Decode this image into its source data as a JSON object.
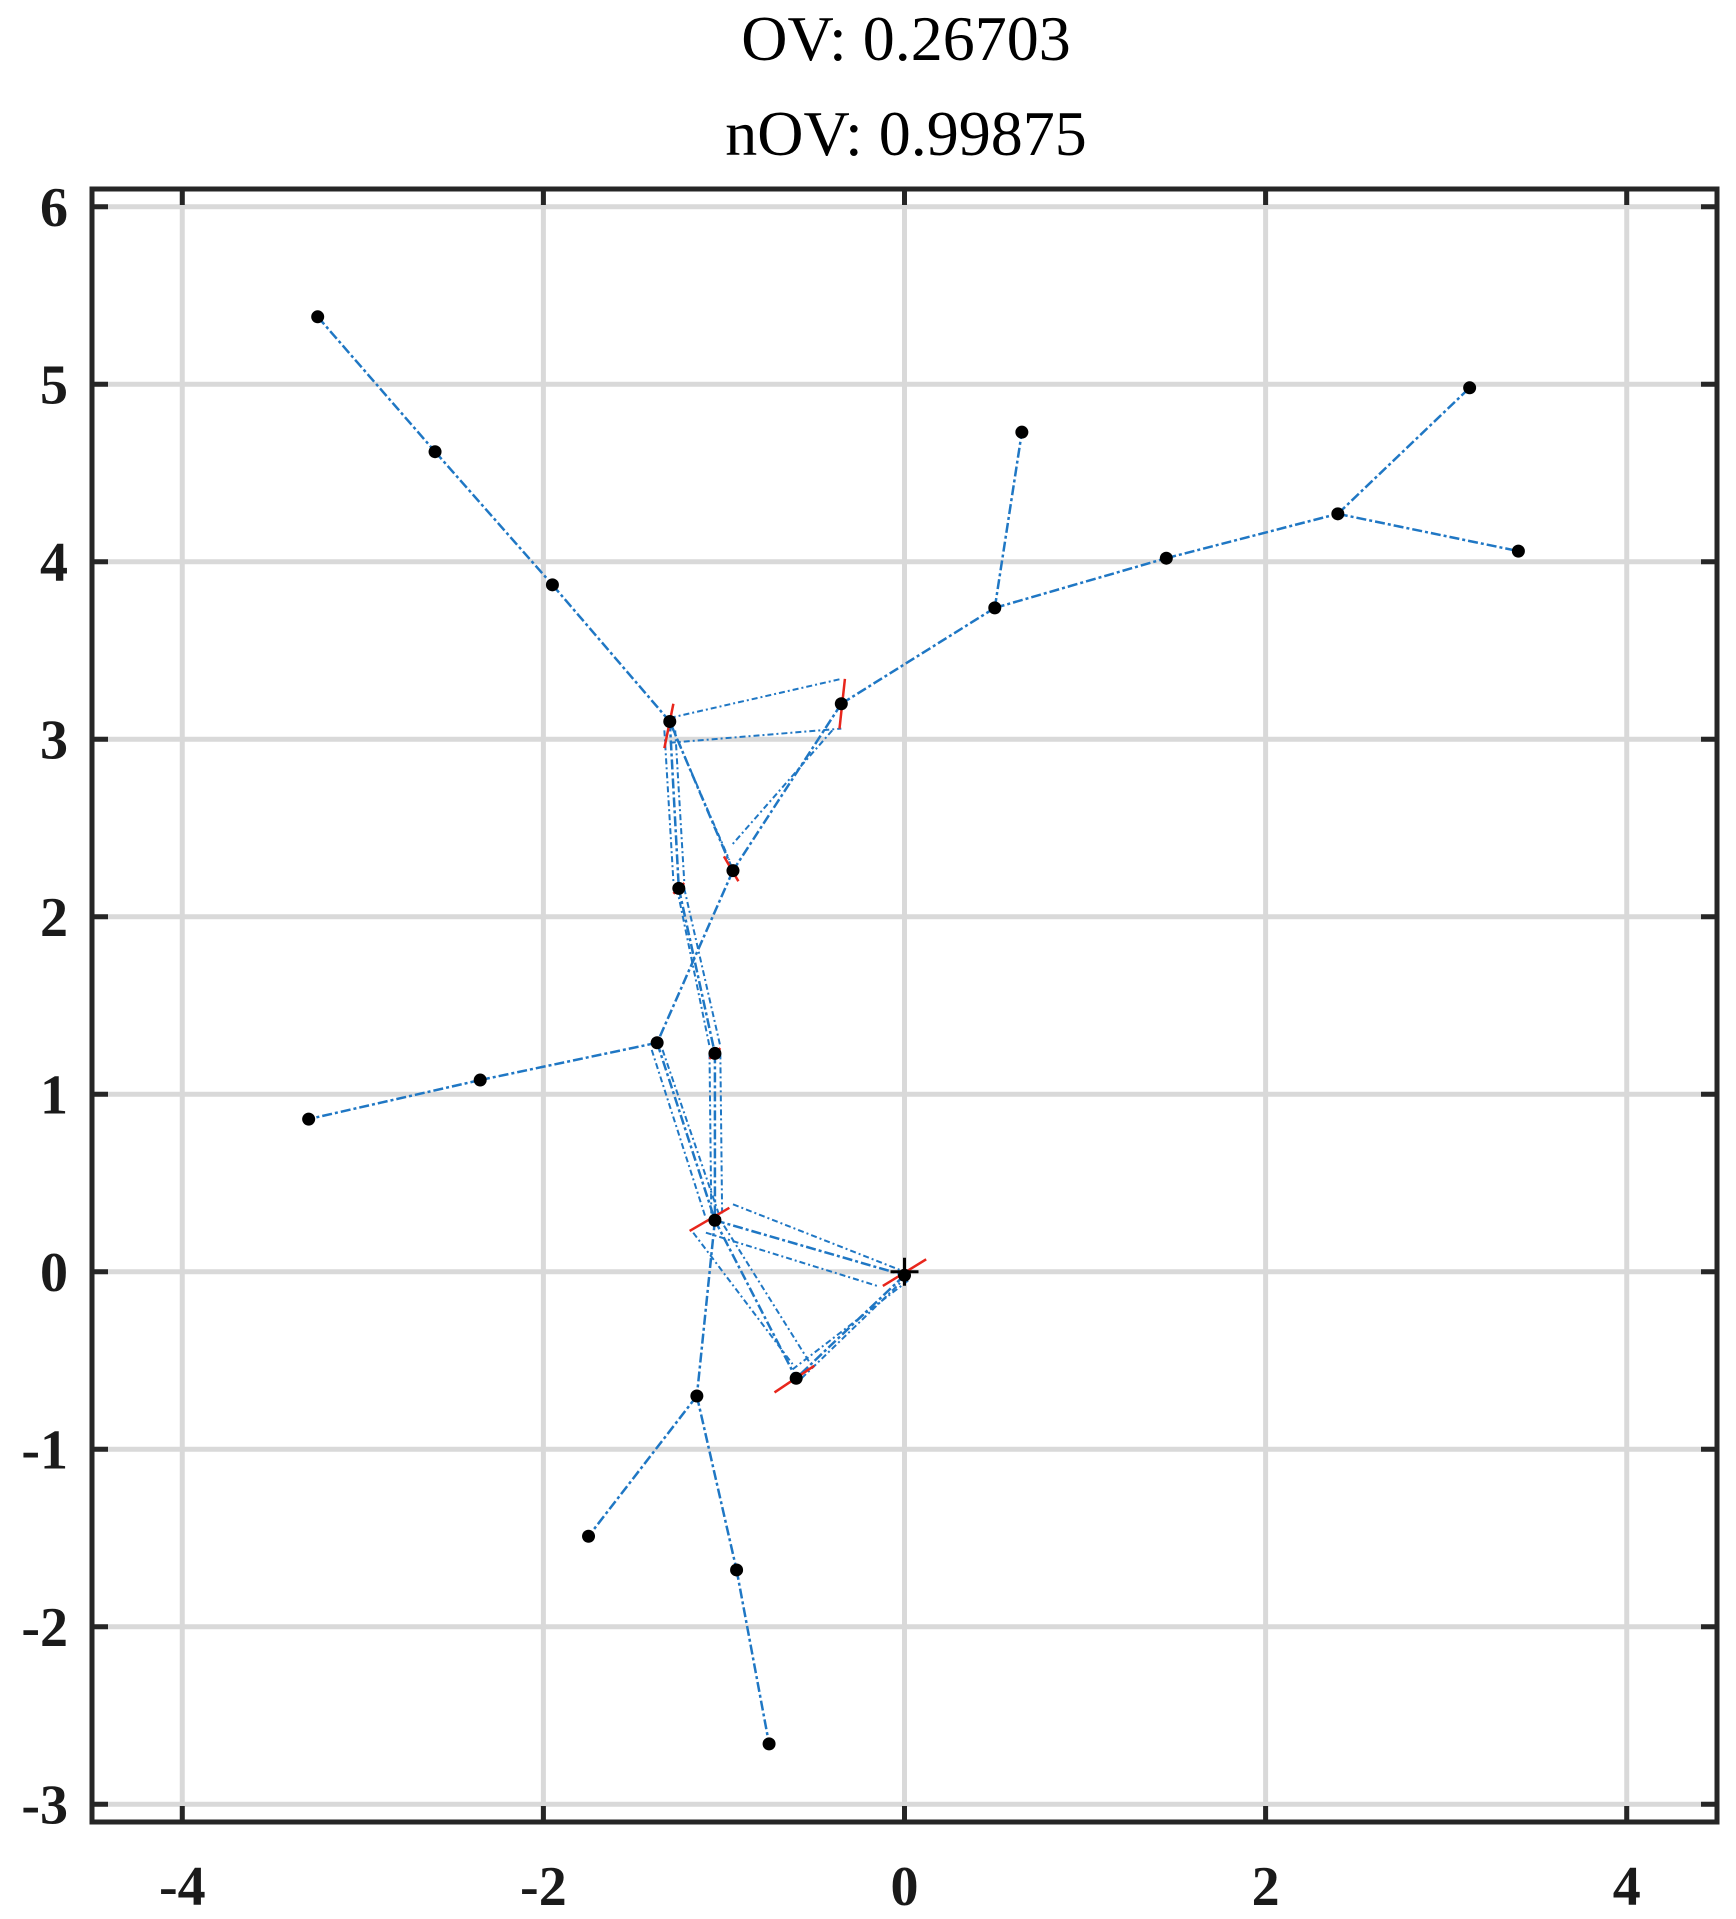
{
  "chart_data": {
    "type": "scatter",
    "title": "OV: 0.26703",
    "subtitle": "nOV: 0.99875",
    "xlabel": "",
    "ylabel": "",
    "xlim": [
      -4.5,
      4.5
    ],
    "ylim": [
      -3.1,
      6.1
    ],
    "xticks": [
      -4,
      -2,
      0,
      2,
      4
    ],
    "xtick_labels": [
      "-4",
      "-2",
      "0",
      "2",
      "4"
    ],
    "yticks": [
      -3,
      -2,
      -1,
      0,
      1,
      2,
      3,
      4,
      5,
      6
    ],
    "ytick_labels": [
      "-3",
      "-2",
      "-1",
      "0",
      "1",
      "2",
      "3",
      "4",
      "5",
      "6"
    ],
    "grid": true,
    "colors": {
      "edge": "#1f77c4",
      "node": "#000000",
      "marker": "#e8261c",
      "grid": "#d9d9d9",
      "axes": "#262626"
    },
    "nodes": [
      {
        "x": -3.25,
        "y": 5.38
      },
      {
        "x": -2.6,
        "y": 4.62
      },
      {
        "x": -1.95,
        "y": 3.87
      },
      {
        "x": -1.3,
        "y": 3.1
      },
      {
        "x": -0.35,
        "y": 3.2
      },
      {
        "x": 0.5,
        "y": 3.74
      },
      {
        "x": 0.65,
        "y": 4.73
      },
      {
        "x": 1.45,
        "y": 4.02
      },
      {
        "x": 2.4,
        "y": 4.27
      },
      {
        "x": 3.13,
        "y": 4.98
      },
      {
        "x": 3.4,
        "y": 4.06
      },
      {
        "x": -0.95,
        "y": 2.26
      },
      {
        "x": -1.25,
        "y": 2.16
      },
      {
        "x": -1.37,
        "y": 1.29
      },
      {
        "x": -2.35,
        "y": 1.08
      },
      {
        "x": -3.3,
        "y": 0.86
      },
      {
        "x": -1.05,
        "y": 1.23
      },
      {
        "x": -1.05,
        "y": 0.29
      },
      {
        "x": 0.0,
        "y": -0.02
      },
      {
        "x": -0.6,
        "y": -0.6
      },
      {
        "x": -1.15,
        "y": -0.7
      },
      {
        "x": -1.75,
        "y": -1.49
      },
      {
        "x": -0.93,
        "y": -1.68
      },
      {
        "x": -0.75,
        "y": -2.66
      }
    ],
    "edges": [
      [
        0,
        1
      ],
      [
        1,
        2
      ],
      [
        2,
        3
      ],
      [
        4,
        5
      ],
      [
        5,
        6
      ],
      [
        5,
        7
      ],
      [
        7,
        8
      ],
      [
        8,
        9
      ],
      [
        8,
        10
      ],
      [
        4,
        11
      ],
      [
        11,
        13
      ],
      [
        13,
        14
      ],
      [
        14,
        15
      ],
      [
        3,
        11
      ],
      [
        3,
        12
      ],
      [
        12,
        16
      ],
      [
        16,
        17
      ],
      [
        13,
        17
      ],
      [
        17,
        18
      ],
      [
        17,
        19
      ],
      [
        18,
        19
      ],
      [
        17,
        20
      ],
      [
        20,
        21
      ],
      [
        20,
        22
      ],
      [
        22,
        23
      ]
    ],
    "loop_lines": [
      [
        [
          -1.3,
          3.12
        ],
        [
          -0.35,
          3.34
        ]
      ],
      [
        [
          -1.3,
          2.98
        ],
        [
          -0.35,
          3.06
        ]
      ],
      [
        [
          -1.33,
          3.05
        ],
        [
          -1.28,
          2.2
        ]
      ],
      [
        [
          -1.27,
          3.05
        ],
        [
          -1.22,
          2.2
        ]
      ],
      [
        [
          -1.26,
          2.16
        ],
        [
          -1.08,
          1.27
        ]
      ],
      [
        [
          -1.22,
          2.16
        ],
        [
          -1.02,
          1.27
        ]
      ],
      [
        [
          -1.08,
          1.23
        ],
        [
          -1.07,
          0.32
        ]
      ],
      [
        [
          -1.02,
          1.23
        ],
        [
          -1.01,
          0.32
        ]
      ],
      [
        [
          -1.4,
          1.25
        ],
        [
          -1.1,
          0.3
        ]
      ],
      [
        [
          -1.34,
          1.25
        ],
        [
          -1.02,
          0.3
        ]
      ],
      [
        [
          -0.95,
          0.38
        ],
        [
          0.0,
          0.0
        ]
      ],
      [
        [
          -1.1,
          0.22
        ],
        [
          -0.15,
          -0.08
        ]
      ],
      [
        [
          -1.17,
          0.22
        ],
        [
          -0.62,
          -0.52
        ]
      ],
      [
        [
          -1.0,
          0.26
        ],
        [
          -0.52,
          -0.52
        ]
      ],
      [
        [
          -0.62,
          -0.55
        ],
        [
          0.02,
          -0.05
        ]
      ],
      [
        [
          -0.57,
          -0.6
        ],
        [
          0.04,
          0.0
        ]
      ],
      [
        [
          -1.28,
          3.05
        ],
        [
          -0.97,
          2.32
        ]
      ],
      [
        [
          -0.4,
          3.05
        ],
        [
          -0.96,
          2.4
        ]
      ]
    ],
    "red_marks": [
      {
        "x1": -1.33,
        "y1": 2.95,
        "x2": -1.28,
        "y2": 3.2
      },
      {
        "x1": -0.36,
        "y1": 3.06,
        "x2": -0.33,
        "y2": 3.34
      },
      {
        "x1": -1.0,
        "y1": 2.34,
        "x2": -0.92,
        "y2": 2.2
      },
      {
        "x1": -1.28,
        "y1": 2.13,
        "x2": -1.22,
        "y2": 2.19
      },
      {
        "x1": -1.08,
        "y1": 1.2,
        "x2": -1.02,
        "y2": 1.26
      },
      {
        "x1": -1.19,
        "y1": 0.23,
        "x2": -0.97,
        "y2": 0.36
      },
      {
        "x1": -0.12,
        "y1": -0.08,
        "x2": 0.12,
        "y2": 0.07
      },
      {
        "x1": -0.72,
        "y1": -0.68,
        "x2": -0.5,
        "y2": -0.53
      }
    ],
    "cross_marks": [
      {
        "x": 0.0,
        "y": 0.0
      }
    ]
  }
}
